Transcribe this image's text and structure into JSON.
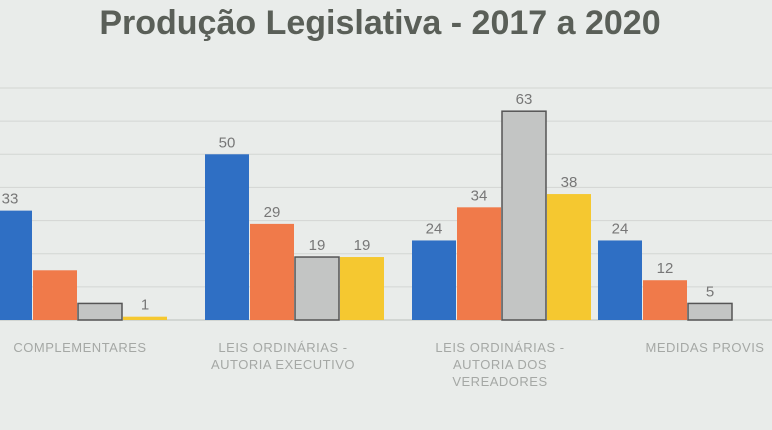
{
  "chart_data": {
    "type": "bar",
    "title": "Produção Legislativa - 2017 a 2020",
    "xlabel": "",
    "ylabel": "",
    "ylim": [
      0,
      70
    ],
    "grid": true,
    "categories": [
      "COMPLEMENTARES",
      "LEIS ORDINÁRIAS - AUTORIA EXECUTIVO",
      "LEIS ORDINÁRIAS - AUTORIA DOS VEREADORES",
      "MEDIDAS PROVIS"
    ],
    "series": [
      {
        "color": "#2f6fc4",
        "values": [
          33,
          50,
          24,
          24
        ]
      },
      {
        "color": "#f07a4a",
        "values": [
          15,
          29,
          34,
          12
        ]
      },
      {
        "color": "#c3c5c4",
        "values": [
          5,
          19,
          63,
          5
        ]
      },
      {
        "color": "#f5c830",
        "values": [
          1,
          19,
          38,
          null
        ]
      }
    ],
    "data_labels": [
      [
        "33",
        "",
        "",
        "1"
      ],
      [
        "50",
        "29",
        "19",
        "19"
      ],
      [
        "24",
        "34",
        "63",
        "38"
      ],
      [
        "24",
        "12",
        "5",
        ""
      ]
    ]
  }
}
